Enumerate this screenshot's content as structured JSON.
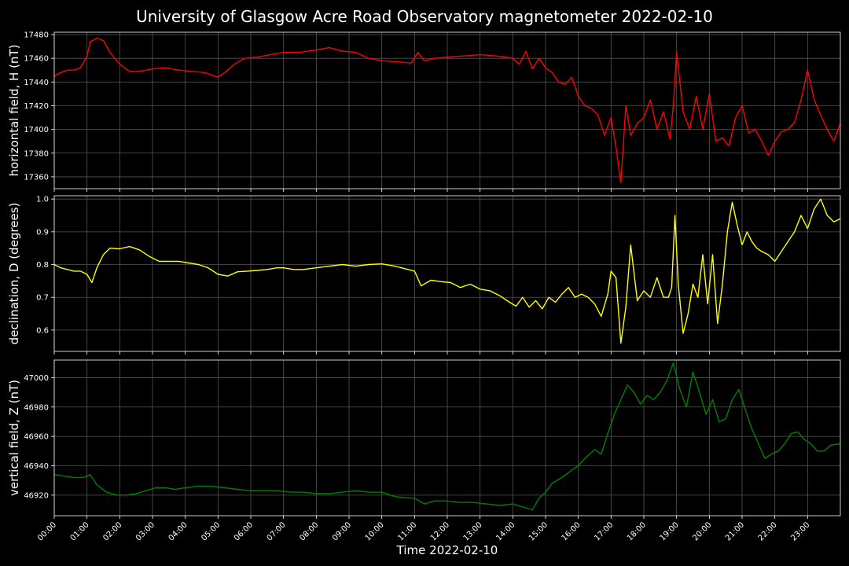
{
  "title": "University of Glasgow Acre Road Observatory magnetometer 2022-02-10",
  "xlabel": "Time 2022-02-10",
  "chart_data": [
    {
      "type": "line",
      "ylabel": "horizontal field, H (nT)",
      "color": "#ff0000",
      "ylim": [
        17350,
        17482
      ],
      "yticks": [
        17360,
        17380,
        17400,
        17420,
        17440,
        17460,
        17480
      ],
      "xlim": [
        0,
        24
      ],
      "grid": true,
      "x": [
        0.0,
        0.2,
        0.4,
        0.6,
        0.8,
        1.0,
        1.1,
        1.3,
        1.5,
        1.7,
        2.0,
        2.3,
        2.6,
        3.0,
        3.4,
        3.8,
        4.2,
        4.6,
        5.0,
        5.2,
        5.5,
        5.8,
        6.2,
        6.6,
        7.0,
        7.5,
        8.0,
        8.4,
        8.8,
        9.2,
        9.6,
        10.0,
        10.5,
        10.9,
        11.1,
        11.3,
        11.6,
        12.0,
        12.5,
        13.0,
        13.5,
        13.8,
        14.0,
        14.2,
        14.4,
        14.6,
        14.8,
        15.0,
        15.2,
        15.4,
        15.6,
        15.8,
        16.0,
        16.2,
        16.4,
        16.6,
        16.8,
        17.0,
        17.15,
        17.3,
        17.45,
        17.6,
        17.8,
        18.0,
        18.2,
        18.4,
        18.6,
        18.8,
        18.9,
        19.0,
        19.2,
        19.4,
        19.6,
        19.8,
        20.0,
        20.2,
        20.4,
        20.6,
        20.8,
        21.0,
        21.2,
        21.4,
        21.6,
        21.8,
        22.0,
        22.2,
        22.4,
        22.6,
        22.8,
        23.0,
        23.2,
        23.4,
        23.6,
        23.8,
        24.0
      ],
      "y": [
        17445,
        17448,
        17450,
        17450,
        17452,
        17462,
        17474,
        17477,
        17475,
        17465,
        17455,
        17449,
        17449,
        17451,
        17452,
        17450,
        17449,
        17448,
        17444,
        17448,
        17455,
        17460,
        17461,
        17463,
        17465,
        17465,
        17467,
        17469,
        17466,
        17465,
        17460,
        17458,
        17457,
        17456,
        17465,
        17458,
        17460,
        17461,
        17462,
        17463,
        17462,
        17461,
        17460,
        17455,
        17466,
        17451,
        17460,
        17452,
        17448,
        17440,
        17438,
        17444,
        17428,
        17420,
        17418,
        17412,
        17395,
        17410,
        17385,
        17355,
        17420,
        17395,
        17405,
        17410,
        17425,
        17400,
        17415,
        17392,
        17420,
        17465,
        17415,
        17400,
        17428,
        17400,
        17430,
        17390,
        17393,
        17386,
        17410,
        17420,
        17397,
        17400,
        17390,
        17378,
        17390,
        17398,
        17400,
        17406,
        17425,
        17450,
        17425,
        17412,
        17400,
        17390,
        17405
      ],
      "line_labels": [
        "17360",
        "17380",
        "17400",
        "17420",
        "17440",
        "17460",
        "17480"
      ]
    },
    {
      "type": "line",
      "ylabel": "declination, D (degrees)",
      "color": "#ffff00",
      "ylim": [
        0.535,
        1.01
      ],
      "yticks": [
        0.6,
        0.7,
        0.8,
        0.9,
        1.0
      ],
      "xlim": [
        0,
        24
      ],
      "grid": true,
      "x": [
        0.0,
        0.2,
        0.4,
        0.6,
        0.8,
        1.0,
        1.15,
        1.3,
        1.5,
        1.7,
        2.0,
        2.3,
        2.6,
        2.9,
        3.2,
        3.5,
        3.8,
        4.1,
        4.4,
        4.7,
        5.0,
        5.3,
        5.6,
        5.9,
        6.2,
        6.5,
        6.8,
        7.0,
        7.3,
        7.6,
        8.0,
        8.4,
        8.8,
        9.2,
        9.6,
        10.0,
        10.4,
        10.8,
        11.0,
        11.2,
        11.5,
        11.8,
        12.1,
        12.4,
        12.7,
        13.0,
        13.3,
        13.6,
        13.9,
        14.1,
        14.3,
        14.5,
        14.7,
        14.9,
        15.1,
        15.3,
        15.5,
        15.7,
        15.9,
        16.1,
        16.3,
        16.5,
        16.7,
        16.9,
        17.0,
        17.15,
        17.3,
        17.45,
        17.6,
        17.8,
        18.0,
        18.2,
        18.4,
        18.6,
        18.75,
        18.85,
        18.95,
        19.05,
        19.2,
        19.35,
        19.5,
        19.65,
        19.8,
        19.95,
        20.1,
        20.25,
        20.4,
        20.55,
        20.7,
        20.85,
        21.0,
        21.15,
        21.3,
        21.45,
        21.6,
        21.8,
        22.0,
        22.2,
        22.4,
        22.6,
        22.8,
        23.0,
        23.2,
        23.4,
        23.6,
        23.8,
        24.0
      ],
      "y": [
        0.8,
        0.79,
        0.785,
        0.78,
        0.78,
        0.77,
        0.745,
        0.79,
        0.83,
        0.85,
        0.848,
        0.855,
        0.845,
        0.825,
        0.81,
        0.81,
        0.81,
        0.805,
        0.8,
        0.79,
        0.77,
        0.765,
        0.778,
        0.78,
        0.782,
        0.785,
        0.79,
        0.79,
        0.785,
        0.785,
        0.79,
        0.795,
        0.8,
        0.795,
        0.8,
        0.802,
        0.795,
        0.785,
        0.78,
        0.735,
        0.752,
        0.748,
        0.745,
        0.73,
        0.74,
        0.725,
        0.72,
        0.705,
        0.685,
        0.673,
        0.7,
        0.67,
        0.69,
        0.665,
        0.7,
        0.685,
        0.71,
        0.73,
        0.7,
        0.71,
        0.7,
        0.68,
        0.642,
        0.71,
        0.78,
        0.76,
        0.56,
        0.67,
        0.86,
        0.69,
        0.72,
        0.7,
        0.76,
        0.7,
        0.7,
        0.73,
        0.95,
        0.74,
        0.59,
        0.65,
        0.74,
        0.7,
        0.83,
        0.68,
        0.83,
        0.62,
        0.74,
        0.9,
        0.99,
        0.92,
        0.86,
        0.9,
        0.87,
        0.85,
        0.84,
        0.83,
        0.81,
        0.84,
        0.87,
        0.9,
        0.95,
        0.91,
        0.97,
        1.0,
        0.95,
        0.93,
        0.94
      ],
      "line_labels": [
        "0.6",
        "0.7",
        "0.8",
        "0.9",
        "1.0"
      ]
    },
    {
      "type": "line",
      "ylabel": "vertical field, Z (nT)",
      "color": "#008000",
      "ylim": [
        46906,
        47012
      ],
      "yticks": [
        46920,
        46940,
        46960,
        46980,
        47000
      ],
      "xlim": [
        0,
        24
      ],
      "grid": true,
      "x": [
        0.0,
        0.3,
        0.6,
        0.9,
        1.1,
        1.3,
        1.6,
        1.9,
        2.2,
        2.5,
        2.8,
        3.1,
        3.4,
        3.7,
        4.0,
        4.4,
        4.8,
        5.2,
        5.6,
        6.0,
        6.4,
        6.8,
        7.2,
        7.6,
        8.0,
        8.4,
        8.8,
        9.2,
        9.6,
        10.0,
        10.4,
        10.8,
        11.0,
        11.3,
        11.6,
        12.0,
        12.4,
        12.8,
        13.2,
        13.6,
        14.0,
        14.3,
        14.6,
        14.8,
        15.0,
        15.2,
        15.5,
        15.8,
        16.0,
        16.2,
        16.5,
        16.7,
        16.9,
        17.1,
        17.3,
        17.5,
        17.7,
        17.9,
        18.1,
        18.3,
        18.5,
        18.7,
        18.9,
        19.1,
        19.3,
        19.5,
        19.7,
        19.9,
        20.1,
        20.3,
        20.5,
        20.7,
        20.9,
        21.1,
        21.3,
        21.5,
        21.7,
        21.9,
        22.1,
        22.3,
        22.5,
        22.7,
        22.9,
        23.1,
        23.3,
        23.5,
        23.7,
        24.0
      ],
      "y": [
        46934,
        46933,
        46932,
        46932,
        46934,
        46927,
        46922,
        46920,
        46920,
        46921,
        46923,
        46925,
        46925,
        46924,
        46925,
        46926,
        46926,
        46925,
        46924,
        46923,
        46923,
        46923,
        46922,
        46922,
        46921,
        46921,
        46922,
        46923,
        46922,
        46922,
        46919,
        46918,
        46918,
        46914,
        46916,
        46916,
        46915,
        46915,
        46914,
        46913,
        46914,
        46912,
        46910,
        46918,
        46922,
        46928,
        46932,
        46937,
        46940,
        46945,
        46951,
        46948,
        46962,
        46975,
        46985,
        46995,
        46990,
        46982,
        46988,
        46985,
        46990,
        46998,
        47010,
        46992,
        46980,
        47004,
        46990,
        46975,
        46985,
        46970,
        46972,
        46985,
        46992,
        46978,
        46965,
        46955,
        46945,
        46948,
        46950,
        46955,
        46962,
        46963,
        46958,
        46955,
        46950,
        46950,
        46954,
        46955
      ],
      "line_labels": [
        "46920",
        "46940",
        "46960",
        "46980",
        "47000"
      ]
    }
  ],
  "xticks": [
    "00:00",
    "01:00",
    "02:00",
    "03:00",
    "04:00",
    "05:00",
    "06:00",
    "07:00",
    "08:00",
    "09:00",
    "10:00",
    "11:00",
    "12:00",
    "13:00",
    "14:00",
    "15:00",
    "16:00",
    "17:00",
    "18:00",
    "19:00",
    "20:00",
    "21:00",
    "22:00",
    "23:00"
  ]
}
